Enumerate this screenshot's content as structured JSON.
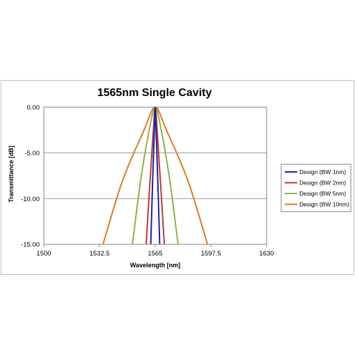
{
  "chart_data": {
    "type": "line",
    "title": "1565nm Single Cavity",
    "xlabel": "Wavelength [nm]",
    "ylabel": "Transmittance [dB]",
    "xlim": [
      1500,
      1630
    ],
    "ylim": [
      -15,
      0
    ],
    "x_ticks": [
      "1500",
      "1532.5",
      "1565",
      "1597.5",
      "1630"
    ],
    "y_ticks": [
      "0.00",
      "-5.00",
      "-10.00",
      "-15.00"
    ],
    "grid": "horizontal",
    "legend_position": "right",
    "center_wavelength": 1565,
    "series": [
      {
        "name": "Design (BW 1nm)",
        "color": "#1f1fa8",
        "bandwidth_nm": 1,
        "points": [
          [
            1562.4,
            -15
          ],
          [
            1563.5,
            -8
          ],
          [
            1564.5,
            -2.5
          ],
          [
            1565,
            0
          ],
          [
            1565.5,
            -2.5
          ],
          [
            1566.5,
            -8
          ],
          [
            1567.6,
            -15
          ]
        ]
      },
      {
        "name": "Design (BW 2nm)",
        "color": "#c0392b",
        "bandwidth_nm": 2,
        "points": [
          [
            1559.7,
            -15
          ],
          [
            1562,
            -8
          ],
          [
            1563.9,
            -2.5
          ],
          [
            1565,
            0
          ],
          [
            1566.1,
            -2.5
          ],
          [
            1568,
            -8
          ],
          [
            1570.3,
            -15
          ]
        ]
      },
      {
        "name": "Design (BW 5nm)",
        "color": "#8db24a",
        "bandwidth_nm": 5,
        "points": [
          [
            1551.7,
            -15
          ],
          [
            1556.5,
            -8
          ],
          [
            1561.5,
            -2.5
          ],
          [
            1565,
            0
          ],
          [
            1568.5,
            -2.5
          ],
          [
            1573.5,
            -8
          ],
          [
            1578.3,
            -15
          ]
        ]
      },
      {
        "name": "Design (BW 10nm)",
        "color": "#e0781f",
        "bandwidth_nm": 10,
        "points": [
          [
            1534.5,
            -15
          ],
          [
            1546,
            -8
          ],
          [
            1558.5,
            -2.5
          ],
          [
            1565,
            0
          ],
          [
            1571.5,
            -2.5
          ],
          [
            1584,
            -8
          ],
          [
            1595.5,
            -15
          ]
        ]
      }
    ]
  }
}
